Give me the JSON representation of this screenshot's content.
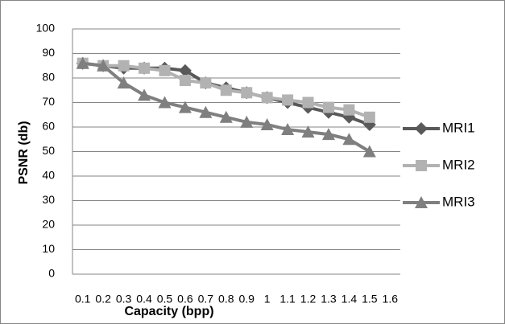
{
  "chart_data": {
    "type": "line",
    "x_label": "Capacity (bpp)",
    "y_label": "PSNR (db)",
    "categories": [
      "0.1",
      "0.2",
      "0.3",
      "0.4",
      "0.5",
      "0.6",
      "0.7",
      "0.8",
      "0.9",
      "1",
      "1.1",
      "1.2",
      "1.3",
      "1.4",
      "1.5",
      "1.6"
    ],
    "series": [
      {
        "name": "MRI1",
        "color": "#595959",
        "marker": "diamond",
        "values": [
          86,
          85,
          84,
          84,
          84,
          83,
          78,
          76,
          74,
          72,
          70,
          68,
          66,
          64,
          61,
          null
        ]
      },
      {
        "name": "MRI2",
        "color": "#b2b2b2",
        "marker": "square",
        "values": [
          86,
          85,
          85,
          84,
          83,
          79,
          78,
          75,
          74,
          72,
          71,
          70,
          68,
          67,
          64,
          null
        ]
      },
      {
        "name": "MRI3",
        "color": "#7f7f7f",
        "marker": "triangle",
        "values": [
          86,
          85,
          78,
          73,
          70,
          68,
          66,
          64,
          62,
          61,
          59,
          58,
          57,
          55,
          50,
          null
        ]
      }
    ],
    "ylim": [
      0,
      100
    ],
    "yticks": [
      0,
      10,
      20,
      30,
      40,
      50,
      60,
      70,
      80,
      90,
      100
    ],
    "grid": true,
    "legend": "right"
  }
}
